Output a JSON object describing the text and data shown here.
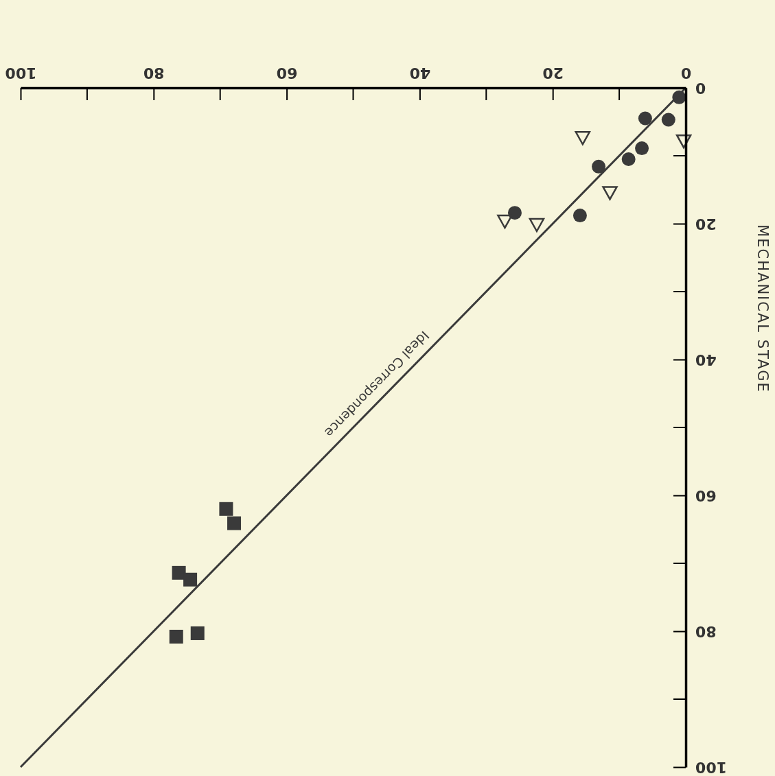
{
  "chart_data": {
    "type": "scatter",
    "ylabel": "MECHANICAL STAGE",
    "xlim": [
      100,
      0
    ],
    "ylim": [
      100,
      0
    ],
    "xticks": [
      0,
      20,
      40,
      60,
      80,
      100
    ],
    "yticks": [
      0,
      20,
      40,
      60,
      80,
      100
    ],
    "grid": false,
    "series": [
      {
        "marker": "circle",
        "color": "#3a3a3a",
        "x": [
          6.1,
          2.6,
          6.6,
          8.6,
          25.7,
          15.9
        ],
        "values": [
          4.5,
          4.7,
          8.9,
          10.5,
          18.4,
          18.8
        ]
      },
      {
        "marker": "circle",
        "color": "#3a3a3a",
        "x": [
          1.0,
          13.1
        ],
        "values": [
          1.4,
          11.6
        ]
      },
      {
        "marker": "triangle",
        "color": "#3a3a3a",
        "x": [
          0.3,
          15.5,
          11.4,
          22.4,
          27.2
        ],
        "values": [
          7.8,
          7.3,
          15.4,
          20.1,
          19.6
        ]
      },
      {
        "marker": "square",
        "color": "#3a3a3a",
        "x": [
          69.1,
          67.9,
          76.2,
          74.5,
          76.6,
          73.4
        ],
        "values": [
          62.0,
          64.1,
          71.4,
          72.4,
          80.8,
          80.3
        ]
      },
      {
        "type": "line",
        "name": "Ideal Correspondence",
        "color": "#3a3a3a",
        "line_style": "solid",
        "x": [
          0,
          100
        ],
        "values": [
          0,
          100
        ]
      }
    ]
  }
}
